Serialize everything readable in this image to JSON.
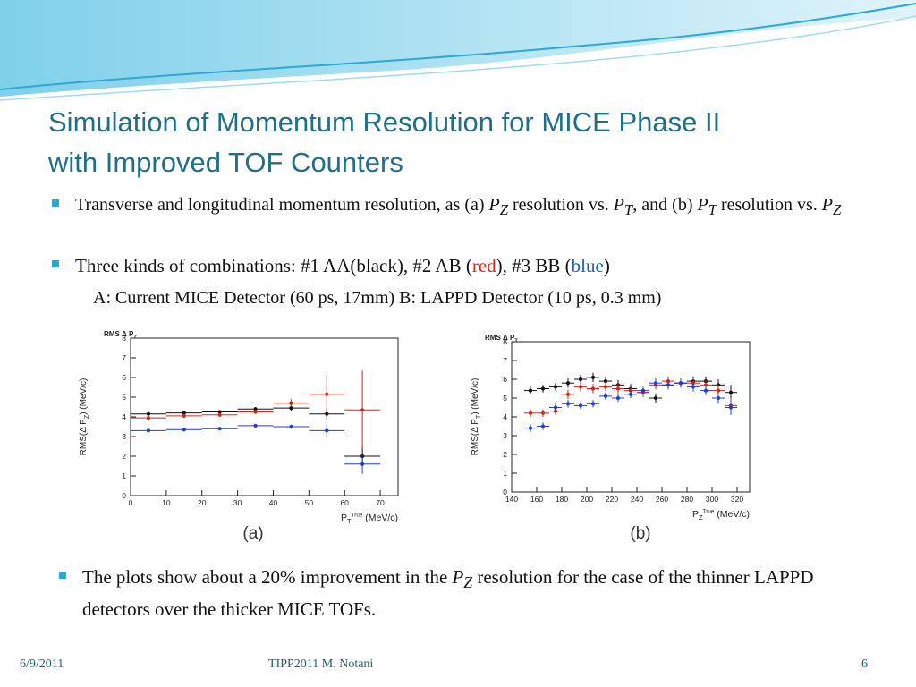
{
  "slide": {
    "title_line1": "Simulation of Momentum Resolution for MICE Phase II",
    "title_line2": "with Improved TOF Counters",
    "bullet1": {
      "t1": "Transverse and longitudinal momentum resolution, as (a) ",
      "v1": "P",
      "s1": "Z",
      "t2": " resolution vs. ",
      "v2": "P",
      "s2": "T",
      "t3": ", and (b) ",
      "v3": "P",
      "s3": "T",
      "t4": " resolution vs. ",
      "v4": "P",
      "s4": "Z"
    },
    "bullet2": {
      "t1": "Three kinds of combinations: #1 AA(black), #2 AB (",
      "red": "red",
      "t2": "), #3 BB (",
      "blue": "blue",
      "t3": ")"
    },
    "subline": "A: Current MICE Detector (60 ps, 17mm)  B: LAPPD Detector (10 ps, 0.3 mm)",
    "bullet3": {
      "t1": "The plots show about a 20% improvement in the ",
      "v1": "P",
      "s1": "Z",
      "t2": " resolution for the case of the thinner LAPPD detectors over the thicker MICE TOFs."
    },
    "footer": {
      "date": "6/9/2011",
      "author": "TIPP2011 M. Notani",
      "page": "6"
    }
  },
  "colors": {
    "title": "#1f6f86",
    "bullet": "#28a9d4",
    "series1": "#111111",
    "series2": "#d3261d",
    "series3": "#1f3fd0"
  },
  "chart_data": [
    {
      "type": "scatter",
      "panel_label": "(a)",
      "corner_label": "RMS Δ P_Z",
      "ylabel": "RMS(Δ P_Z) (MeV/c)",
      "xlabel": "P_T^True (MeV/c)",
      "xlim": [
        0,
        75
      ],
      "ylim": [
        0,
        8
      ],
      "xticks": [
        0,
        10,
        20,
        30,
        40,
        50,
        60,
        70
      ],
      "yticks": [
        0,
        1,
        2,
        3,
        4,
        5,
        6,
        7,
        8
      ],
      "grid": false,
      "series": [
        {
          "color": "black",
          "x": [
            5,
            15,
            25,
            35,
            45,
            55,
            65
          ],
          "xerr": [
            5,
            5,
            5,
            5,
            5,
            5,
            5
          ],
          "y": [
            4.15,
            4.2,
            4.25,
            4.4,
            4.45,
            4.15,
            2.0
          ],
          "yerr": [
            0.08,
            0.08,
            0.08,
            0.1,
            0.15,
            0.3,
            0.5
          ]
        },
        {
          "color": "red",
          "x": [
            5,
            15,
            25,
            35,
            45,
            55,
            65
          ],
          "xerr": [
            5,
            5,
            5,
            5,
            5,
            5,
            5
          ],
          "y": [
            3.95,
            4.05,
            4.1,
            4.25,
            4.7,
            5.15,
            4.35
          ],
          "yerr": [
            0.08,
            0.08,
            0.08,
            0.1,
            0.2,
            1.0,
            2.0
          ]
        },
        {
          "color": "blue",
          "x": [
            5,
            15,
            25,
            35,
            45,
            55,
            65
          ],
          "xerr": [
            5,
            5,
            5,
            5,
            5,
            5,
            5
          ],
          "y": [
            3.3,
            3.35,
            3.4,
            3.55,
            3.5,
            3.3,
            1.6
          ],
          "yerr": [
            0.06,
            0.06,
            0.06,
            0.08,
            0.1,
            0.3,
            0.5
          ]
        }
      ]
    },
    {
      "type": "scatter",
      "panel_label": "(b)",
      "corner_label": "RMS Δ P_T",
      "ylabel": "RMS(Δ P_T) (MeV/c)",
      "xlabel": "P_Z^True (MeV/c)",
      "xlim": [
        140,
        330
      ],
      "ylim": [
        0,
        8
      ],
      "xticks": [
        140,
        160,
        180,
        200,
        220,
        240,
        260,
        280,
        300,
        320
      ],
      "yticks": [
        0,
        1,
        2,
        3,
        4,
        5,
        6,
        7,
        8
      ],
      "grid": false,
      "series": [
        {
          "color": "black",
          "x": [
            155,
            165,
            175,
            185,
            195,
            205,
            215,
            225,
            235,
            245,
            255,
            265,
            275,
            285,
            295,
            305,
            315
          ],
          "xerr": [
            5,
            5,
            5,
            5,
            5,
            5,
            5,
            5,
            5,
            5,
            5,
            5,
            5,
            5,
            5,
            5,
            5
          ],
          "y": [
            5.4,
            5.5,
            5.6,
            5.8,
            6.0,
            6.1,
            5.9,
            5.7,
            5.5,
            5.3,
            5.0,
            5.7,
            5.8,
            5.9,
            5.9,
            5.7,
            5.3
          ],
          "yerr": [
            0.2,
            0.2,
            0.2,
            0.25,
            0.25,
            0.25,
            0.25,
            0.25,
            0.25,
            0.25,
            0.25,
            0.25,
            0.25,
            0.25,
            0.25,
            0.3,
            0.4
          ]
        },
        {
          "color": "red",
          "x": [
            155,
            165,
            175,
            185,
            195,
            205,
            215,
            225,
            235,
            245,
            255,
            265,
            275,
            285,
            295,
            305,
            315
          ],
          "xerr": [
            5,
            5,
            5,
            5,
            5,
            5,
            5,
            5,
            5,
            5,
            5,
            5,
            5,
            5,
            5,
            5,
            5
          ],
          "y": [
            4.2,
            4.2,
            4.3,
            5.2,
            5.6,
            5.5,
            5.6,
            5.5,
            5.4,
            5.3,
            5.7,
            5.9,
            5.8,
            5.8,
            5.7,
            5.4,
            4.6
          ],
          "yerr": [
            0.2,
            0.2,
            0.2,
            0.25,
            0.25,
            0.25,
            0.25,
            0.25,
            0.25,
            0.25,
            0.25,
            0.25,
            0.25,
            0.25,
            0.25,
            0.3,
            0.4
          ]
        },
        {
          "color": "blue",
          "x": [
            155,
            165,
            175,
            185,
            195,
            205,
            215,
            225,
            235,
            245,
            255,
            265,
            275,
            285,
            295,
            305,
            315
          ],
          "xerr": [
            5,
            5,
            5,
            5,
            5,
            5,
            5,
            5,
            5,
            5,
            5,
            5,
            5,
            5,
            5,
            5,
            5
          ],
          "y": [
            3.4,
            3.5,
            4.5,
            4.7,
            4.6,
            4.7,
            5.1,
            5.0,
            5.2,
            5.4,
            5.8,
            5.7,
            5.8,
            5.6,
            5.4,
            5.0,
            4.5
          ],
          "yerr": [
            0.2,
            0.2,
            0.2,
            0.2,
            0.2,
            0.2,
            0.2,
            0.2,
            0.2,
            0.2,
            0.25,
            0.25,
            0.25,
            0.25,
            0.25,
            0.3,
            0.4
          ]
        }
      ]
    }
  ]
}
